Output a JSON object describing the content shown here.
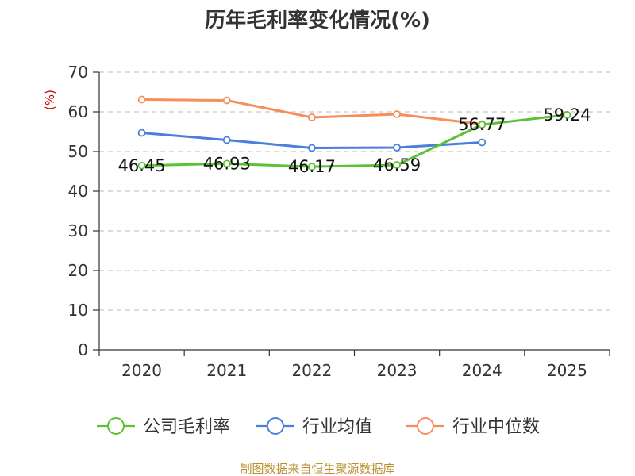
{
  "chart_data": {
    "type": "line",
    "title": "历年毛利率变化情况(%)",
    "ylabel": "(%)",
    "xlabel": "",
    "categories": [
      "2020",
      "2021",
      "2022",
      "2023",
      "2024",
      "2025"
    ],
    "ylim": [
      0,
      70
    ],
    "yticks": [
      "0",
      "10",
      "20",
      "30",
      "40",
      "50",
      "60",
      "70"
    ],
    "grid": true,
    "legend_position": "bottom",
    "series": [
      {
        "name": "公司毛利率",
        "color": "#5bc236",
        "values": [
          46.45,
          46.93,
          46.17,
          46.59,
          56.77,
          59.24
        ],
        "labels": [
          "46.45",
          "46.93",
          "46.17",
          "46.59",
          "56.77",
          "59.24"
        ]
      },
      {
        "name": "行业均值",
        "color": "#4a7fdb",
        "values": [
          54.7,
          52.9,
          50.9,
          51.0,
          52.3,
          null
        ]
      },
      {
        "name": "行业中位数",
        "color": "#f68d5b",
        "values": [
          63.1,
          62.9,
          58.6,
          59.4,
          56.9,
          null
        ]
      }
    ],
    "ylabel_color": "#cc0000",
    "source": "制图数据来自恒生聚源数据库",
    "source_color": "#b8912e"
  }
}
